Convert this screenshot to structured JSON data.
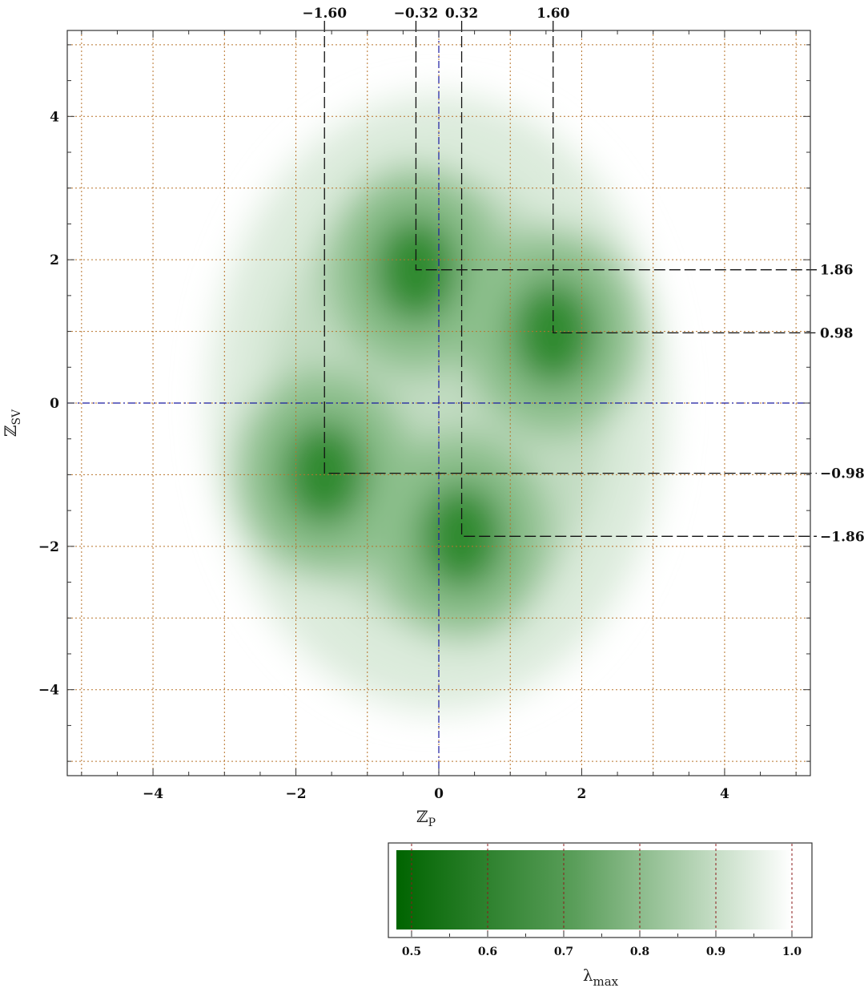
{
  "chart_data": {
    "type": "heatmap",
    "title": "",
    "xlabel": "ℤ",
    "xlabel_sub": "P",
    "ylabel": "ℤ",
    "ylabel_sub": "SV",
    "xlim": [
      -5.2,
      5.2
    ],
    "ylim": [
      -5.2,
      5.2
    ],
    "x_ticks": [
      -4,
      -2,
      0,
      2,
      4
    ],
    "y_ticks": [
      -4,
      -2,
      0,
      2,
      4
    ],
    "x_tick_labels": [
      "−4",
      "−2",
      "0",
      "2",
      "4"
    ],
    "y_tick_labels": [
      "−4",
      "−2",
      "0",
      "2",
      "4"
    ],
    "grid": true,
    "grid_lines": [
      -5,
      -4,
      -3,
      -2,
      -1,
      0,
      1,
      2,
      3,
      4,
      5
    ],
    "grid_color": "#b8732a",
    "zero_line_color": "#1a1aa0",
    "color_low": "#006400",
    "color_high": "#ffffff",
    "hotspots": [
      {
        "x": -0.32,
        "y": 1.86,
        "value": 0.55
      },
      {
        "x": 1.6,
        "y": 0.98,
        "value": 0.55
      },
      {
        "x": -1.6,
        "y": -0.98,
        "value": 0.55
      },
      {
        "x": 0.32,
        "y": -1.86,
        "value": 0.55
      }
    ],
    "guide_lines": {
      "x_values": [
        -1.6,
        -0.32,
        0.32,
        1.6
      ],
      "x_labels": [
        "−1.60",
        "−0.32",
        "0.32",
        "1.60"
      ],
      "y_values": [
        1.86,
        0.98,
        -0.98,
        -1.86
      ],
      "y_labels": [
        "1.86",
        "0.98",
        "−0.98",
        "−1.86"
      ]
    },
    "colorbar": {
      "label": "λ",
      "label_sub": "max",
      "range": [
        0.48,
        1.0
      ],
      "ticks": [
        0.5,
        0.6,
        0.7,
        0.8,
        0.9,
        1.0
      ],
      "tick_labels": [
        "0.5",
        "0.6",
        "0.7",
        "0.8",
        "0.9",
        "1.0"
      ],
      "gridline_color": "#8b1a1a"
    }
  }
}
